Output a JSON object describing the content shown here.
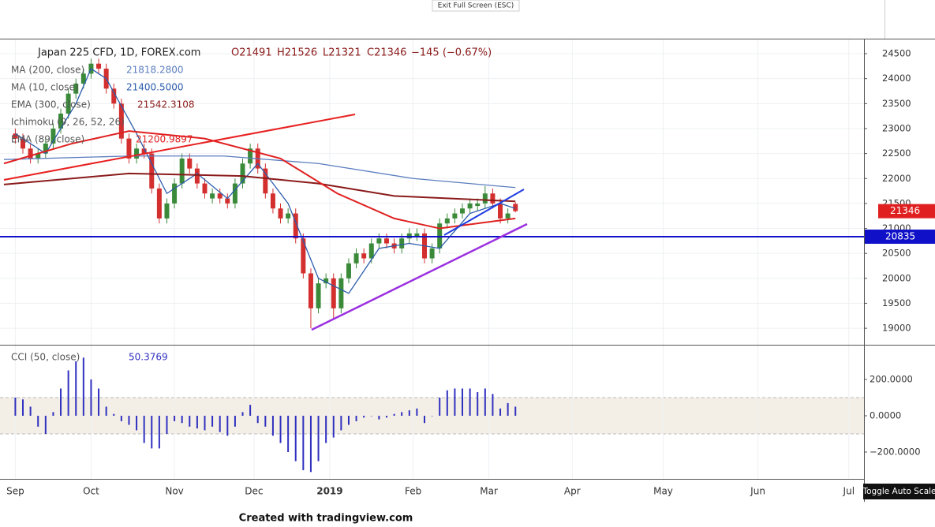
{
  "top_button": "Exit Full Screen (ESC)",
  "footer": "Created with tradingview.com",
  "toggle_button": "Toggle Auto Scale",
  "chart_data": [
    {
      "type": "candlestick",
      "title": "Japan 225 CFD, 1D, FOREX.com",
      "ohlc_legend": [
        "O21491",
        "H21526",
        "L21321",
        "C21346",
        "−145 (−0.67%)"
      ],
      "up_color": "#3a8a3a",
      "down_color": "#d32f2f",
      "x": [
        0,
        2,
        4,
        6,
        8,
        10,
        12,
        14,
        16,
        18,
        20,
        22,
        24,
        26,
        28,
        30,
        32,
        34,
        36,
        38,
        40,
        42,
        44,
        46,
        48,
        50,
        52,
        54,
        56,
        58,
        60,
        62,
        64,
        66,
        68,
        70,
        72,
        74,
        76,
        78,
        80,
        82,
        84,
        86,
        88,
        90,
        92,
        94,
        96,
        98,
        100,
        102,
        104,
        106,
        108,
        110,
        112,
        114,
        116,
        118,
        120,
        122,
        124,
        126,
        128,
        130,
        132
      ],
      "open": [
        22900,
        22800,
        22600,
        22400,
        22500,
        22700,
        23000,
        23300,
        23700,
        23900,
        24100,
        24300,
        24200,
        23800,
        23500,
        22800,
        22400,
        22600,
        22500,
        21800,
        21200,
        21500,
        21900,
        22400,
        22200,
        21900,
        21600,
        21700,
        21600,
        21500,
        21900,
        22300,
        22600,
        22200,
        21700,
        21400,
        21200,
        21300,
        20800,
        20100,
        19400,
        19900,
        20000,
        19400,
        20000,
        20300,
        20500,
        20400,
        20700,
        20800,
        20700,
        20600,
        20800,
        20850,
        20900,
        20400,
        20600,
        21100,
        21200,
        21300,
        21400,
        21450,
        21500,
        21700,
        21500,
        21200,
        21491
      ],
      "high": [
        23000,
        22900,
        22700,
        22600,
        22800,
        23100,
        23400,
        23800,
        24000,
        24200,
        24400,
        24400,
        24300,
        23900,
        23600,
        22900,
        22700,
        22700,
        22600,
        21900,
        21600,
        22000,
        22500,
        22500,
        22300,
        22000,
        21800,
        21800,
        21700,
        22000,
        22400,
        22700,
        22700,
        22300,
        21800,
        21500,
        21400,
        21400,
        20900,
        20200,
        20000,
        20100,
        20100,
        20100,
        20400,
        20600,
        20600,
        20800,
        20900,
        20900,
        20800,
        20900,
        21000,
        21000,
        21000,
        20700,
        21200,
        21300,
        21400,
        21500,
        21600,
        21600,
        21850,
        21800,
        21600,
        21400,
        21526
      ],
      "low": [
        22700,
        22500,
        22300,
        22300,
        22400,
        22600,
        22900,
        23200,
        23600,
        23800,
        24000,
        24100,
        23700,
        23400,
        22700,
        22300,
        22300,
        22400,
        21700,
        21100,
        21100,
        21400,
        21800,
        22100,
        21800,
        21600,
        21500,
        21500,
        21400,
        21400,
        21800,
        22200,
        22100,
        21600,
        21300,
        21100,
        21100,
        20700,
        20000,
        19000,
        19300,
        19800,
        19200,
        19300,
        19900,
        20200,
        20300,
        20300,
        20600,
        20600,
        20500,
        20500,
        20700,
        20750,
        20300,
        20300,
        20500,
        21000,
        21100,
        21200,
        21300,
        21350,
        21400,
        21400,
        21100,
        21100,
        21321
      ],
      "close": [
        22800,
        22600,
        22400,
        22500,
        22700,
        23000,
        23300,
        23700,
        23900,
        24100,
        24300,
        24200,
        23800,
        23500,
        22800,
        22400,
        22600,
        22500,
        21800,
        21200,
        21500,
        21900,
        22400,
        22200,
        21900,
        21700,
        21700,
        21600,
        21500,
        21900,
        22300,
        22600,
        22200,
        21700,
        21400,
        21200,
        21300,
        20800,
        20100,
        19400,
        19900,
        20000,
        19400,
        20000,
        20300,
        20500,
        20400,
        20700,
        20800,
        20700,
        20600,
        20800,
        20900,
        20900,
        20400,
        20600,
        21100,
        21200,
        21300,
        21400,
        21500,
        21500,
        21700,
        21500,
        21200,
        21300,
        21346
      ],
      "indicators": [
        {
          "name": "MA (200, close)",
          "legend_value": "21818.2800",
          "color": "#5b7dbf",
          "x": [
            -3,
            30,
            55,
            80,
            105,
            132
          ],
          "values": [
            22380,
            22450,
            22450,
            22300,
            22000,
            21818
          ]
        },
        {
          "name": "MA (10, close)",
          "legend_value": "21400.5000",
          "color": "#2a5cab",
          "x": [
            0,
            8,
            16,
            20,
            24,
            32,
            40,
            48,
            56,
            64,
            72,
            80,
            88,
            96,
            104,
            112,
            120,
            128,
            132
          ],
          "values": [
            22900,
            22500,
            23500,
            24200,
            24000,
            22900,
            21700,
            22100,
            21600,
            22300,
            21500,
            20000,
            19700,
            20600,
            20700,
            20600,
            21300,
            21500,
            21400
          ]
        },
        {
          "name": "EMA (300, close)",
          "legend_value": "21542.3108",
          "color": "#8b1a1a",
          "x": [
            -3,
            30,
            60,
            80,
            100,
            132
          ],
          "values": [
            21880,
            22100,
            22050,
            21900,
            21650,
            21542
          ]
        },
        {
          "name": "Ichimoku (9, 26, 52, 26)",
          "color": "#26a69a"
        },
        {
          "name": "EMA (89, close)",
          "legend_value": "21200.9897",
          "color": "#e02020",
          "x": [
            -3,
            15,
            30,
            50,
            70,
            85,
            100,
            112,
            132
          ],
          "values": [
            22300,
            22700,
            22950,
            22800,
            22400,
            21700,
            21200,
            21000,
            21200
          ]
        }
      ],
      "last_price": {
        "value": 21346,
        "label": "21346",
        "color": "#e02020"
      },
      "hline": {
        "value": 20835,
        "label": "20835",
        "color": "#1010c8"
      },
      "xlim": [
        -3,
        224
      ],
      "ylim": [
        18670,
        24785
      ],
      "yticks": [
        19000,
        19500,
        20000,
        20500,
        21000,
        21500,
        22000,
        22500,
        23000,
        23500,
        24000,
        24500
      ],
      "grid": true
    },
    {
      "type": "histogram",
      "title": "CCI (50, close)",
      "legend_value": "50.3769",
      "color": "#3030c0",
      "band": [
        -100,
        100
      ],
      "band_color": "#f3efe6",
      "x": [
        0,
        2,
        4,
        6,
        8,
        10,
        12,
        14,
        16,
        18,
        20,
        22,
        24,
        26,
        28,
        30,
        32,
        34,
        36,
        38,
        40,
        42,
        44,
        46,
        48,
        50,
        52,
        54,
        56,
        58,
        60,
        62,
        64,
        66,
        68,
        70,
        72,
        74,
        76,
        78,
        80,
        82,
        84,
        86,
        88,
        90,
        92,
        94,
        96,
        98,
        100,
        102,
        104,
        106,
        108,
        110,
        112,
        114,
        116,
        118,
        120,
        122,
        124,
        126,
        128,
        130,
        132
      ],
      "values": [
        100,
        90,
        50,
        -60,
        -100,
        20,
        150,
        250,
        300,
        320,
        200,
        150,
        50,
        10,
        -30,
        -50,
        -80,
        -150,
        -180,
        -180,
        -100,
        -30,
        -40,
        -60,
        -70,
        -80,
        -60,
        -90,
        -110,
        -60,
        20,
        60,
        -40,
        -60,
        -110,
        -150,
        -200,
        -250,
        -300,
        -310,
        -250,
        -150,
        -120,
        -80,
        -50,
        -30,
        -10,
        0,
        -20,
        -10,
        10,
        20,
        30,
        40,
        -40,
        0,
        100,
        140,
        150,
        150,
        150,
        130,
        150,
        120,
        40,
        70,
        50
      ],
      "xlim": [
        -3,
        224
      ],
      "xticks": [
        {
          "value": 0,
          "label": "Sep"
        },
        {
          "value": 20,
          "label": "Oct"
        },
        {
          "value": 42,
          "label": "Nov"
        },
        {
          "value": 63,
          "label": "Dec"
        },
        {
          "value": 83,
          "label": "2019"
        },
        {
          "value": 105,
          "label": "Feb"
        },
        {
          "value": 125,
          "label": "Mar"
        },
        {
          "value": 147,
          "label": "Apr"
        },
        {
          "value": 171,
          "label": "May"
        },
        {
          "value": 196,
          "label": "Jun"
        },
        {
          "value": 220,
          "label": "Jul"
        }
      ],
      "ylim": [
        -339,
        378
      ],
      "yticks": [
        {
          "value": 200,
          "label": "200.0000"
        },
        {
          "value": 0,
          "label": "0.0000"
        },
        {
          "value": -200,
          "label": "−200.0000"
        }
      ],
      "grid": true
    }
  ]
}
